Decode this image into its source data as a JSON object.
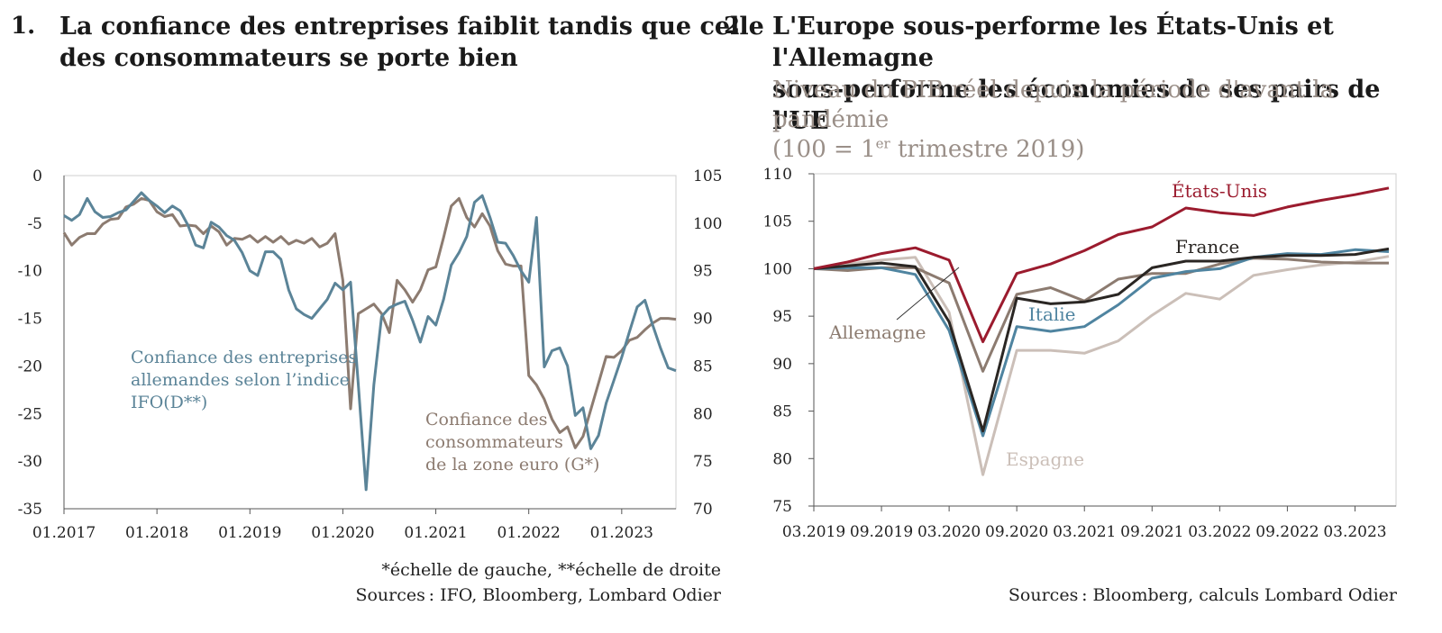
{
  "chart_data": [
    {
      "type": "line",
      "number": "1.",
      "title_line1": "La confiance des entreprises faiblit tandis que celle",
      "title_line2": "des consommateurs se porte bien",
      "x_ticks": [
        "01.2017",
        "01.2018",
        "01.2019",
        "01.2020",
        "01.2021",
        "01.2022",
        "01.2023"
      ],
      "xlim": [
        "01.2017",
        "08.2023"
      ],
      "y_left_ticks": [
        0,
        -5,
        -10,
        -15,
        -20,
        -25,
        -30,
        -35
      ],
      "y_left_lim": [
        -35,
        0
      ],
      "y_right_ticks": [
        105,
        100,
        95,
        90,
        85,
        80,
        75,
        70
      ],
      "y_right_lim": [
        70,
        105
      ],
      "series": [
        {
          "name_line1": "Confiance des entreprises",
          "name_line2": "allemandes selon l’indice",
          "name_line3": "IFO(D**)",
          "axis": "right",
          "color": "#5b8498",
          "x": [
            "01.2017",
            "02.2017",
            "03.2017",
            "04.2017",
            "05.2017",
            "06.2017",
            "07.2017",
            "08.2017",
            "09.2017",
            "10.2017",
            "11.2017",
            "12.2017",
            "01.2018",
            "02.2018",
            "03.2018",
            "04.2018",
            "05.2018",
            "06.2018",
            "07.2018",
            "08.2018",
            "09.2018",
            "10.2018",
            "11.2018",
            "12.2018",
            "01.2019",
            "02.2019",
            "03.2019",
            "04.2019",
            "05.2019",
            "06.2019",
            "07.2019",
            "08.2019",
            "09.2019",
            "10.2019",
            "11.2019",
            "12.2019",
            "01.2020",
            "02.2020",
            "03.2020",
            "04.2020",
            "05.2020",
            "06.2020",
            "07.2020",
            "08.2020",
            "09.2020",
            "10.2020",
            "11.2020",
            "12.2020",
            "01.2021",
            "02.2021",
            "03.2021",
            "04.2021",
            "05.2021",
            "06.2021",
            "07.2021",
            "08.2021",
            "09.2021",
            "10.2021",
            "11.2021",
            "12.2021",
            "01.2022",
            "02.2022",
            "03.2022",
            "04.2022",
            "05.2022",
            "06.2022",
            "07.2022",
            "08.2022",
            "09.2022",
            "10.2022",
            "11.2022",
            "12.2022",
            "01.2023",
            "02.2023",
            "03.2023",
            "04.2023",
            "05.2023",
            "06.2023",
            "07.2023",
            "08.2023"
          ],
          "values": [
            100.8,
            100.3,
            100.9,
            102.6,
            101.2,
            100.6,
            100.7,
            101.1,
            101.4,
            102.3,
            103.2,
            102.4,
            101.8,
            101.1,
            101.8,
            101.3,
            99.8,
            97.7,
            97.4,
            100.1,
            99.6,
            98.7,
            98.2,
            96.9,
            95.0,
            94.5,
            97.0,
            97.0,
            96.2,
            93.0,
            91.0,
            90.4,
            90.0,
            91.0,
            92.0,
            93.7,
            93.0,
            93.8,
            83.0,
            72.0,
            83.0,
            90.2,
            91.1,
            91.5,
            91.8,
            89.8,
            87.5,
            90.2,
            89.3,
            92.0,
            95.6,
            96.9,
            98.6,
            102.2,
            102.9,
            100.6,
            98.0,
            97.9,
            96.6,
            95.0,
            93.8,
            100.6,
            84.9,
            86.6,
            86.9,
            85.0,
            79.8,
            80.6,
            76.3,
            77.7,
            81.1,
            83.5,
            85.9,
            88.6,
            91.2,
            91.9,
            89.3,
            86.9,
            84.8,
            84.5
          ]
        },
        {
          "name_line1": "Confiance des",
          "name_line2": "consommateurs",
          "name_line3": "de la zone euro (G*)",
          "axis": "left",
          "color": "#8c7b70",
          "x": [
            "01.2017",
            "02.2017",
            "03.2017",
            "04.2017",
            "05.2017",
            "06.2017",
            "07.2017",
            "08.2017",
            "09.2017",
            "10.2017",
            "11.2017",
            "12.2017",
            "01.2018",
            "02.2018",
            "03.2018",
            "04.2018",
            "05.2018",
            "06.2018",
            "07.2018",
            "08.2018",
            "09.2018",
            "10.2018",
            "11.2018",
            "12.2018",
            "01.2019",
            "02.2019",
            "03.2019",
            "04.2019",
            "05.2019",
            "06.2019",
            "07.2019",
            "08.2019",
            "09.2019",
            "10.2019",
            "11.2019",
            "12.2019",
            "01.2020",
            "02.2020",
            "03.2020",
            "04.2020",
            "05.2020",
            "06.2020",
            "07.2020",
            "08.2020",
            "09.2020",
            "10.2020",
            "11.2020",
            "12.2020",
            "01.2021",
            "02.2021",
            "03.2021",
            "04.2021",
            "05.2021",
            "06.2021",
            "07.2021",
            "08.2021",
            "09.2021",
            "10.2021",
            "11.2021",
            "12.2021",
            "01.2022",
            "02.2022",
            "03.2022",
            "04.2022",
            "05.2022",
            "06.2022",
            "07.2022",
            "08.2022",
            "09.2022",
            "10.2022",
            "11.2022",
            "12.2022",
            "01.2023",
            "02.2023",
            "03.2023",
            "04.2023",
            "05.2023",
            "06.2023",
            "07.2023",
            "08.2023"
          ],
          "values": [
            -6.0,
            -7.3,
            -6.5,
            -6.1,
            -6.1,
            -5.1,
            -4.6,
            -4.5,
            -3.3,
            -3.0,
            -2.4,
            -2.6,
            -3.8,
            -4.3,
            -4.1,
            -5.3,
            -5.2,
            -5.3,
            -6.1,
            -5.3,
            -5.9,
            -7.3,
            -6.6,
            -6.7,
            -6.3,
            -7.0,
            -6.4,
            -7.0,
            -6.4,
            -7.2,
            -6.8,
            -7.1,
            -6.6,
            -7.5,
            -7.1,
            -6.1,
            -11.0,
            -24.5,
            -14.5,
            -14.0,
            -13.5,
            -14.5,
            -16.5,
            -11.0,
            -12.0,
            -13.3,
            -12.0,
            -9.9,
            -9.6,
            -6.5,
            -3.2,
            -2.4,
            -4.4,
            -5.4,
            -4.0,
            -5.3,
            -7.9,
            -9.3,
            -9.5,
            -9.5,
            -21.0,
            -22.0,
            -23.5,
            -25.6,
            -27.0,
            -26.4,
            -28.6,
            -27.4,
            -24.6,
            -21.8,
            -19.0,
            -19.1,
            -18.4,
            -17.3,
            -17.0,
            -16.2,
            -15.5,
            -15.0,
            -15.0,
            -15.1
          ]
        }
      ],
      "footnote": "*échelle de gauche, **échelle de droite",
      "source": "Sources : IFO, Bloomberg, Lombard Odier"
    },
    {
      "type": "line",
      "number": "2.",
      "title_line1": "L'Europe sous-performe les États-Unis et l'Allemagne",
      "title_line2": "sous-performe les économies de ses pairs de l'UE",
      "subtitle_line1": "Niveau du PIB réel depuis la période d'avant la pandémie",
      "subtitle_line2_a": "(100 = 1",
      "subtitle_line2_sup": "er",
      "subtitle_line2_b": "trimestre 2019)",
      "x_ticks": [
        "03.2019",
        "09.2019",
        "03.2020",
        "09.2020",
        "03.2021",
        "09.2021",
        "03.2022",
        "09.2022",
        "03.2023"
      ],
      "x": [
        "03.2019",
        "06.2019",
        "09.2019",
        "12.2019",
        "03.2020",
        "06.2020",
        "09.2020",
        "12.2020",
        "03.2021",
        "06.2021",
        "09.2021",
        "12.2021",
        "03.2022",
        "06.2022",
        "09.2022",
        "12.2022",
        "03.2023",
        "06.2023"
      ],
      "y_ticks": [
        110,
        105,
        100,
        95,
        90,
        85,
        80,
        75
      ],
      "ylim": [
        75,
        110
      ],
      "series": [
        {
          "name": "États-Unis",
          "color": "#9b1b2e",
          "values": [
            100.0,
            100.7,
            101.6,
            102.2,
            100.9,
            92.3,
            99.5,
            100.5,
            101.9,
            103.6,
            104.4,
            106.4,
            105.9,
            105.6,
            106.5,
            107.2,
            107.8,
            108.5
          ]
        },
        {
          "name": "France",
          "color": "#2a2623",
          "values": [
            100.0,
            100.3,
            100.6,
            100.2,
            94.4,
            82.9,
            96.9,
            96.3,
            96.5,
            97.3,
            100.1,
            100.8,
            100.8,
            101.2,
            101.4,
            101.4,
            101.5,
            102.1
          ]
        },
        {
          "name": "Italie",
          "color": "#4f84a0",
          "values": [
            100.0,
            100.1,
            100.1,
            99.4,
            93.5,
            82.4,
            93.9,
            93.4,
            93.9,
            96.2,
            99.0,
            99.7,
            100.0,
            101.2,
            101.6,
            101.5,
            102.0,
            101.8
          ]
        },
        {
          "name": "Allemagne",
          "color": "#8c7b70",
          "values": [
            100.0,
            99.8,
            100.1,
            100.1,
            98.5,
            89.2,
            97.3,
            98.0,
            96.6,
            98.9,
            99.5,
            99.5,
            100.5,
            101.1,
            101.0,
            100.7,
            100.6,
            100.6
          ]
        },
        {
          "name": "Espagne",
          "color": "#cbbfb8",
          "values": [
            100.0,
            100.5,
            100.9,
            101.2,
            95.4,
            78.3,
            91.4,
            91.4,
            91.1,
            92.4,
            95.1,
            97.4,
            96.8,
            99.3,
            99.9,
            100.4,
            100.7,
            101.3
          ]
        }
      ],
      "source": "Sources : Bloomberg, calculs Lombard Odier"
    }
  ]
}
